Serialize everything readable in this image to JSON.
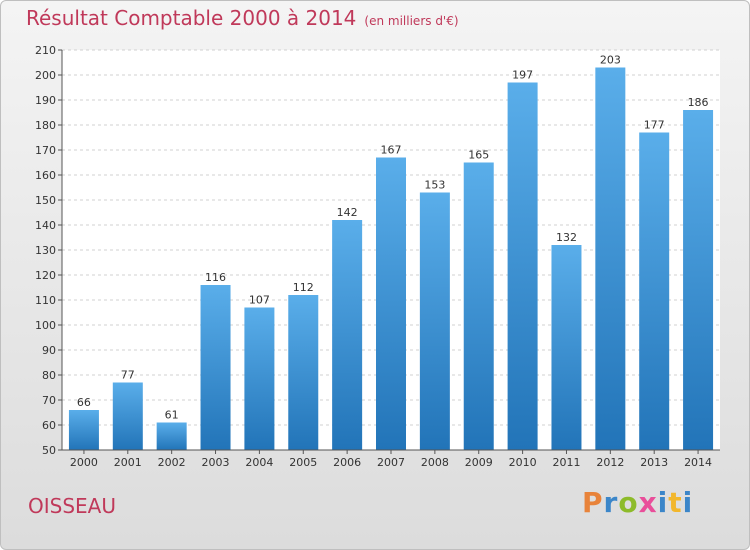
{
  "header": {
    "title": "Résultat Comptable 2000 à 2014",
    "subtitle": "(en milliers d'€)"
  },
  "footer": {
    "commune": "OISSEAU",
    "brand": "Proxiti"
  },
  "colors": {
    "title": "#c0395a",
    "bar_top": "#5aaeea",
    "bar_bottom": "#2274b8",
    "brand_p": "#e8833a",
    "brand_r": "#3b86c9",
    "brand_o": "#8dbb2a",
    "brand_x": "#e94e9a",
    "brand_i": "#3b86c9",
    "brand_t": "#f2b72d"
  },
  "chart_data": {
    "type": "bar",
    "title": "Résultat Comptable 2000 à 2014",
    "subtitle": "(en milliers d'€)",
    "categories": [
      "2000",
      "2001",
      "2002",
      "2003",
      "2004",
      "2005",
      "2006",
      "2007",
      "2008",
      "2009",
      "2010",
      "2011",
      "2012",
      "2013",
      "2014"
    ],
    "values": [
      66,
      77,
      61,
      116,
      107,
      112,
      142,
      167,
      153,
      165,
      197,
      132,
      203,
      177,
      186
    ],
    "ylim": [
      50,
      210
    ],
    "yticks": [
      50,
      60,
      70,
      80,
      90,
      100,
      110,
      120,
      130,
      140,
      150,
      160,
      170,
      180,
      190,
      200,
      210
    ],
    "grid": true,
    "data_labels": true
  }
}
